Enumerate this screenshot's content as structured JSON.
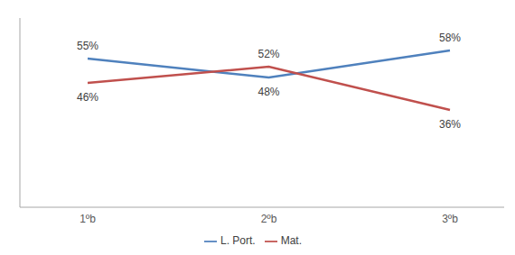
{
  "chart_data": {
    "type": "line",
    "categories": [
      "1ºb",
      "2ºb",
      "3ºb"
    ],
    "series": [
      {
        "name": "L. Port.",
        "color": "#4f81bd",
        "values": [
          55,
          48,
          58
        ],
        "value_labels": [
          "55%",
          "48%",
          "58%"
        ]
      },
      {
        "name": "Mat.",
        "color": "#c0504d",
        "values": [
          46,
          52,
          36
        ],
        "value_labels": [
          "46%",
          "52%",
          "36%"
        ]
      }
    ],
    "ylim": [
      0,
      70
    ],
    "tick_labels": "x",
    "grid": false,
    "legend": "bottom",
    "data_labels": true
  }
}
